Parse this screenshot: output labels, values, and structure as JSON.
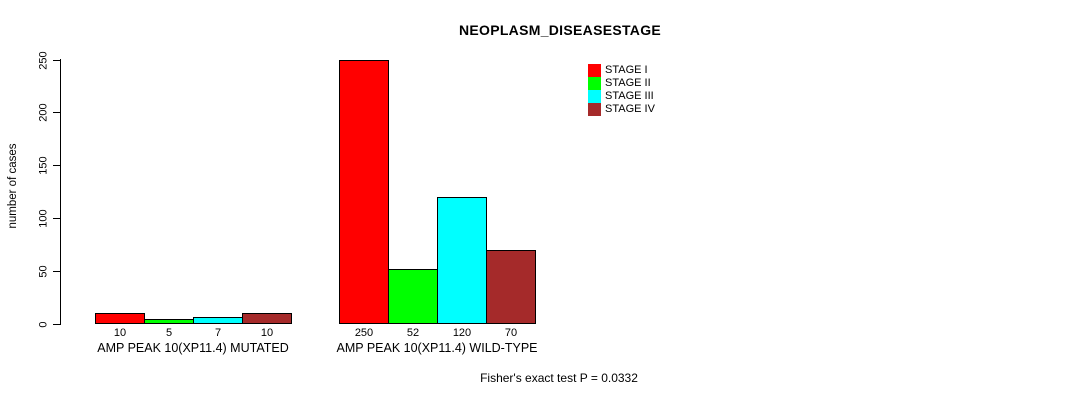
{
  "chart_data": {
    "type": "bar",
    "title": "NEOPLASM_DISEASESTAGE",
    "xlabel": "",
    "ylabel": "number of cases",
    "ylim": [
      0,
      250
    ],
    "yticks": [
      0,
      50,
      100,
      150,
      200,
      250
    ],
    "grid": false,
    "legend_position": "top-right",
    "bar_value_labels_shown": true,
    "categories": [
      "AMP PEAK 10(XP11.4) MUTATED",
      "AMP PEAK 10(XP11.4) WILD-TYPE"
    ],
    "series": [
      {
        "name": "STAGE I",
        "color": "#FF0000",
        "values": [
          10,
          250
        ]
      },
      {
        "name": "STAGE II",
        "color": "#00FF00",
        "values": [
          5,
          52
        ]
      },
      {
        "name": "STAGE III",
        "color": "#00FFFF",
        "values": [
          7,
          120
        ]
      },
      {
        "name": "STAGE IV",
        "color": "#A52A2A",
        "values": [
          10,
          70
        ]
      }
    ]
  },
  "footer": {
    "note": "Fisher's exact test P = 0.0332"
  },
  "axis_color": "#000000"
}
